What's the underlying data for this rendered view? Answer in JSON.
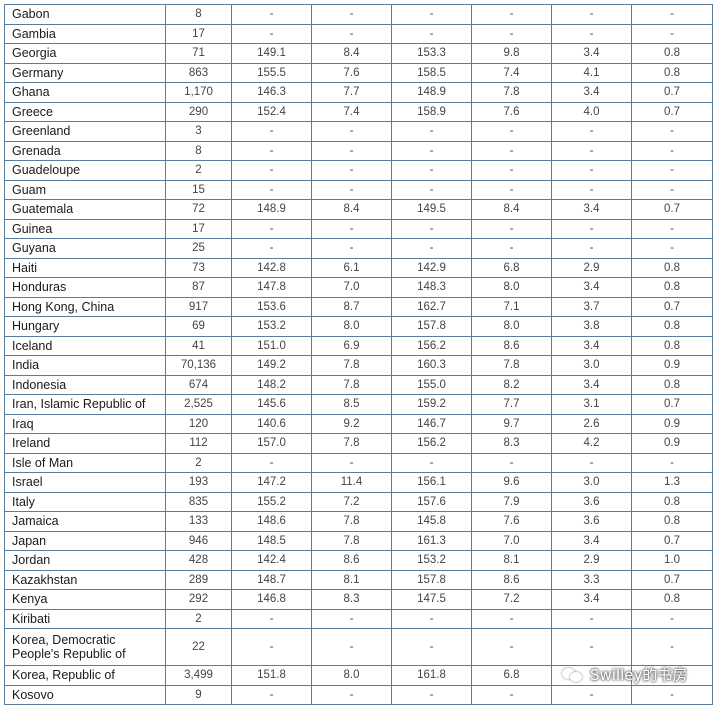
{
  "rows": [
    [
      "Gabon",
      "8",
      "-",
      "-",
      "-",
      "-",
      "-",
      "-"
    ],
    [
      "Gambia",
      "17",
      "-",
      "-",
      "-",
      "-",
      "-",
      "-"
    ],
    [
      "Georgia",
      "71",
      "149.1",
      "8.4",
      "153.3",
      "9.8",
      "3.4",
      "0.8"
    ],
    [
      "Germany",
      "863",
      "155.5",
      "7.6",
      "158.5",
      "7.4",
      "4.1",
      "0.8"
    ],
    [
      "Ghana",
      "1,170",
      "146.3",
      "7.7",
      "148.9",
      "7.8",
      "3.4",
      "0.7"
    ],
    [
      "Greece",
      "290",
      "152.4",
      "7.4",
      "158.9",
      "7.6",
      "4.0",
      "0.7"
    ],
    [
      "Greenland",
      "3",
      "-",
      "-",
      "-",
      "-",
      "-",
      "-"
    ],
    [
      "Grenada",
      "8",
      "-",
      "-",
      "-",
      "-",
      "-",
      "-"
    ],
    [
      "Guadeloupe",
      "2",
      "-",
      "-",
      "-",
      "-",
      "-",
      "-"
    ],
    [
      "Guam",
      "15",
      "-",
      "-",
      "-",
      "-",
      "-",
      "-"
    ],
    [
      "Guatemala",
      "72",
      "148.9",
      "8.4",
      "149.5",
      "8.4",
      "3.4",
      "0.7"
    ],
    [
      "Guinea",
      "17",
      "-",
      "-",
      "-",
      "-",
      "-",
      "-"
    ],
    [
      "Guyana",
      "25",
      "-",
      "-",
      "-",
      "-",
      "-",
      "-"
    ],
    [
      "Haiti",
      "73",
      "142.8",
      "6.1",
      "142.9",
      "6.8",
      "2.9",
      "0.8"
    ],
    [
      "Honduras",
      "87",
      "147.8",
      "7.0",
      "148.3",
      "8.0",
      "3.4",
      "0.8"
    ],
    [
      "Hong Kong, China",
      "917",
      "153.6",
      "8.7",
      "162.7",
      "7.1",
      "3.7",
      "0.7"
    ],
    [
      "Hungary",
      "69",
      "153.2",
      "8.0",
      "157.8",
      "8.0",
      "3.8",
      "0.8"
    ],
    [
      "Iceland",
      "41",
      "151.0",
      "6.9",
      "156.2",
      "8.6",
      "3.4",
      "0.8"
    ],
    [
      "India",
      "70,136",
      "149.2",
      "7.8",
      "160.3",
      "7.8",
      "3.0",
      "0.9"
    ],
    [
      "Indonesia",
      "674",
      "148.2",
      "7.8",
      "155.0",
      "8.2",
      "3.4",
      "0.8"
    ],
    [
      "Iran, Islamic Republic of",
      "2,525",
      "145.6",
      "8.5",
      "159.2",
      "7.7",
      "3.1",
      "0.7"
    ],
    [
      "Iraq",
      "120",
      "140.6",
      "9.2",
      "146.7",
      "9.7",
      "2.6",
      "0.9"
    ],
    [
      "Ireland",
      "112",
      "157.0",
      "7.8",
      "156.2",
      "8.3",
      "4.2",
      "0.9"
    ],
    [
      "Isle of Man",
      "2",
      "-",
      "-",
      "-",
      "-",
      "-",
      "-"
    ],
    [
      "Israel",
      "193",
      "147.2",
      "11.4",
      "156.1",
      "9.6",
      "3.0",
      "1.3"
    ],
    [
      "Italy",
      "835",
      "155.2",
      "7.2",
      "157.6",
      "7.9",
      "3.6",
      "0.8"
    ],
    [
      "Jamaica",
      "133",
      "148.6",
      "7.8",
      "145.8",
      "7.6",
      "3.6",
      "0.8"
    ],
    [
      "Japan",
      "946",
      "148.5",
      "7.8",
      "161.3",
      "7.0",
      "3.4",
      "0.7"
    ],
    [
      "Jordan",
      "428",
      "142.4",
      "8.6",
      "153.2",
      "8.1",
      "2.9",
      "1.0"
    ],
    [
      "Kazakhstan",
      "289",
      "148.7",
      "8.1",
      "157.8",
      "8.6",
      "3.3",
      "0.7"
    ],
    [
      "Kenya",
      "292",
      "146.8",
      "8.3",
      "147.5",
      "7.2",
      "3.4",
      "0.8"
    ],
    [
      "Kiribati",
      "2",
      "-",
      "-",
      "-",
      "-",
      "-",
      "-"
    ],
    [
      "Korea, Democratic People's Republic of",
      "22",
      "-",
      "-",
      "-",
      "-",
      "-",
      "-"
    ],
    [
      "Korea, Republic of",
      "3,499",
      "151.8",
      "8.0",
      "161.8",
      "6.8",
      "",
      ""
    ],
    [
      "Kosovo",
      "9",
      "-",
      "-",
      "-",
      "-",
      "-",
      "-"
    ]
  ],
  "watermark": "Swilley的书房"
}
